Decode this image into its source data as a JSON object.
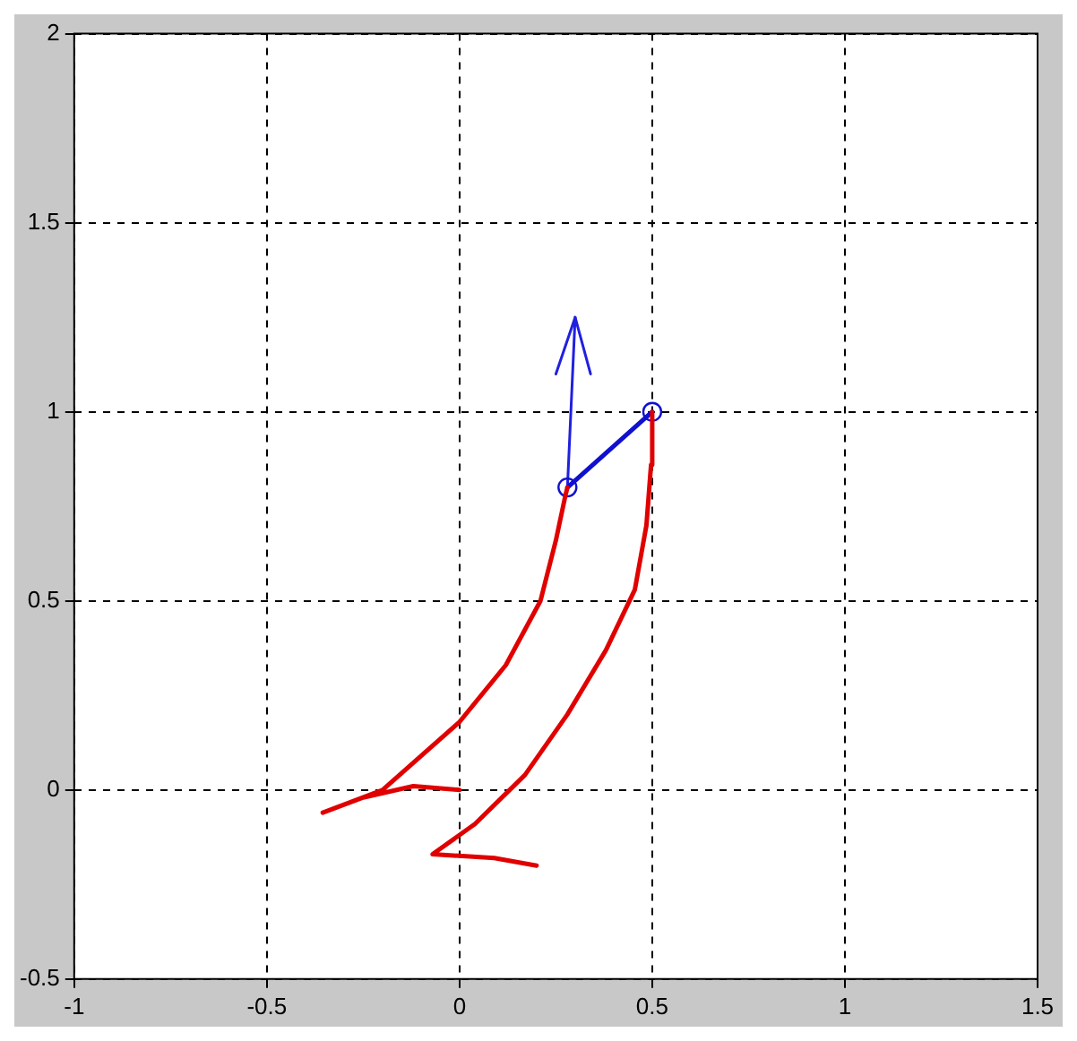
{
  "chart_data": {
    "type": "line",
    "xlim": [
      -1,
      1.5
    ],
    "ylim": [
      -0.5,
      2
    ],
    "xticks": [
      -1,
      -0.5,
      0,
      0.5,
      1,
      1.5
    ],
    "yticks": [
      -0.5,
      0,
      0.5,
      1,
      1.5,
      2
    ],
    "grid": true,
    "legend": false,
    "marker": "none",
    "series": [
      {
        "color": "#e00000",
        "x": [
          0,
          -0.12,
          -0.25,
          -0.355,
          -0.2,
          0,
          0.12,
          0.21,
          0.25,
          0.275,
          0.28
        ],
        "values": [
          0,
          0.01,
          -0.02,
          -0.06,
          0,
          0.18,
          0.33,
          0.5,
          0.66,
          0.78,
          0.8
        ]
      },
      {
        "color": "#e00000",
        "x": [
          0.2,
          0.09,
          -0.07,
          0.04,
          0.17,
          0.28,
          0.38,
          0.455,
          0.485,
          0.497,
          0.5
        ],
        "values": [
          -0.2,
          -0.18,
          -0.17,
          -0.09,
          0.04,
          0.2,
          0.37,
          0.53,
          0.7,
          0.86,
          1
        ]
      },
      {
        "color": "#1010d0",
        "marker": "circle",
        "x": [
          0.28,
          0.5
        ],
        "values": [
          0.8,
          1
        ]
      },
      {
        "color": "#2020e0",
        "x": [
          0.28,
          0.3
        ],
        "values": [
          0.8,
          1.25
        ]
      },
      {
        "color": "#2020e0",
        "x": [
          0.25,
          0.3,
          0.34
        ],
        "values": [
          1.1,
          1.25,
          1.1
        ]
      }
    ]
  }
}
